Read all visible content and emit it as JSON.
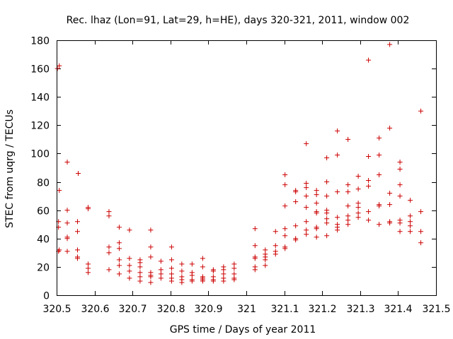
{
  "chart_data": {
    "type": "scatter",
    "title": "Rec. lhaz (Lon=91, Lat=29, h=HE), days 320-321, 2011, window 002",
    "xlabel": "GPS time / Days of year 2011",
    "ylabel": "STEC from uqrg / TECUs",
    "xlim": [
      320.5,
      321.5
    ],
    "ylim": [
      0,
      180
    ],
    "xticks": [
      "320.5",
      "320.6",
      "320.7",
      "320.8",
      "320.9",
      "321",
      "321.1",
      "321.2",
      "321.3",
      "321.4",
      "321.5"
    ],
    "yticks": [
      "0",
      "20",
      "40",
      "60",
      "80",
      "100",
      "120",
      "140",
      "160",
      "180"
    ],
    "grid": false,
    "marker": "plus",
    "color": "#cc0000",
    "points": [
      [
        320.502,
        160
      ],
      [
        320.507,
        162
      ],
      [
        320.507,
        74
      ],
      [
        320.505,
        52
      ],
      [
        320.505,
        48
      ],
      [
        320.507,
        32
      ],
      [
        320.505,
        31
      ],
      [
        320.528,
        94
      ],
      [
        320.528,
        60
      ],
      [
        320.528,
        51
      ],
      [
        320.528,
        41
      ],
      [
        320.528,
        40
      ],
      [
        320.528,
        31
      ],
      [
        320.557,
        86
      ],
      [
        320.555,
        52
      ],
      [
        320.555,
        45
      ],
      [
        320.555,
        32
      ],
      [
        320.555,
        27
      ],
      [
        320.555,
        26
      ],
      [
        320.583,
        62
      ],
      [
        320.583,
        61
      ],
      [
        320.583,
        22
      ],
      [
        320.583,
        19
      ],
      [
        320.583,
        16
      ],
      [
        320.638,
        59
      ],
      [
        320.638,
        56
      ],
      [
        320.638,
        34
      ],
      [
        320.638,
        30
      ],
      [
        320.638,
        18
      ],
      [
        320.665,
        48
      ],
      [
        320.665,
        37
      ],
      [
        320.665,
        33
      ],
      [
        320.665,
        25
      ],
      [
        320.665,
        21
      ],
      [
        320.665,
        15
      ],
      [
        320.692,
        46
      ],
      [
        320.692,
        26
      ],
      [
        320.692,
        21
      ],
      [
        320.692,
        17
      ],
      [
        320.692,
        12
      ],
      [
        320.72,
        25
      ],
      [
        320.72,
        23
      ],
      [
        320.72,
        20
      ],
      [
        320.72,
        16
      ],
      [
        320.72,
        13
      ],
      [
        320.72,
        10
      ],
      [
        320.748,
        46
      ],
      [
        320.748,
        34
      ],
      [
        320.748,
        27
      ],
      [
        320.748,
        16
      ],
      [
        320.748,
        14
      ],
      [
        320.748,
        13
      ],
      [
        320.748,
        9
      ],
      [
        320.775,
        24
      ],
      [
        320.775,
        18
      ],
      [
        320.775,
        15
      ],
      [
        320.775,
        12
      ],
      [
        320.803,
        34
      ],
      [
        320.803,
        25
      ],
      [
        320.803,
        19
      ],
      [
        320.803,
        15
      ],
      [
        320.803,
        12
      ],
      [
        320.803,
        10
      ],
      [
        320.83,
        22
      ],
      [
        320.83,
        17
      ],
      [
        320.83,
        13
      ],
      [
        320.83,
        11
      ],
      [
        320.83,
        9
      ],
      [
        320.857,
        22
      ],
      [
        320.857,
        16
      ],
      [
        320.857,
        14
      ],
      [
        320.857,
        11
      ],
      [
        320.857,
        10
      ],
      [
        320.885,
        26
      ],
      [
        320.885,
        20
      ],
      [
        320.885,
        13
      ],
      [
        320.885,
        12
      ],
      [
        320.885,
        11
      ],
      [
        320.885,
        10
      ],
      [
        320.913,
        18
      ],
      [
        320.913,
        17
      ],
      [
        320.913,
        13
      ],
      [
        320.913,
        11
      ],
      [
        320.913,
        10
      ],
      [
        320.94,
        20
      ],
      [
        320.94,
        18
      ],
      [
        320.94,
        15
      ],
      [
        320.94,
        12
      ],
      [
        320.94,
        10
      ],
      [
        320.968,
        22
      ],
      [
        320.968,
        19
      ],
      [
        320.968,
        15
      ],
      [
        320.968,
        12
      ],
      [
        320.968,
        11
      ],
      [
        321.023,
        47
      ],
      [
        321.023,
        35
      ],
      [
        321.023,
        27
      ],
      [
        321.023,
        26
      ],
      [
        321.023,
        20
      ],
      [
        321.023,
        18
      ],
      [
        321.05,
        32
      ],
      [
        321.05,
        29
      ],
      [
        321.05,
        27
      ],
      [
        321.05,
        25
      ],
      [
        321.05,
        21
      ],
      [
        321.077,
        45
      ],
      [
        321.077,
        35
      ],
      [
        321.077,
        31
      ],
      [
        321.077,
        29
      ],
      [
        321.102,
        85
      ],
      [
        321.102,
        78
      ],
      [
        321.102,
        63
      ],
      [
        321.102,
        47
      ],
      [
        321.102,
        42
      ],
      [
        321.102,
        34
      ],
      [
        321.102,
        33
      ],
      [
        321.13,
        74
      ],
      [
        321.13,
        73
      ],
      [
        321.13,
        66
      ],
      [
        321.13,
        49
      ],
      [
        321.13,
        40
      ],
      [
        321.13,
        39
      ],
      [
        321.158,
        107
      ],
      [
        321.158,
        79
      ],
      [
        321.158,
        76
      ],
      [
        321.158,
        70
      ],
      [
        321.158,
        62
      ],
      [
        321.158,
        52
      ],
      [
        321.158,
        46
      ],
      [
        321.158,
        43
      ],
      [
        321.185,
        74
      ],
      [
        321.185,
        71
      ],
      [
        321.185,
        65
      ],
      [
        321.185,
        59
      ],
      [
        321.185,
        58
      ],
      [
        321.185,
        48
      ],
      [
        321.185,
        47
      ],
      [
        321.185,
        41
      ],
      [
        321.212,
        97
      ],
      [
        321.212,
        80
      ],
      [
        321.212,
        70
      ],
      [
        321.212,
        60
      ],
      [
        321.212,
        58
      ],
      [
        321.212,
        54
      ],
      [
        321.212,
        51
      ],
      [
        321.212,
        42
      ],
      [
        321.24,
        116
      ],
      [
        321.24,
        99
      ],
      [
        321.24,
        73
      ],
      [
        321.24,
        55
      ],
      [
        321.24,
        50
      ],
      [
        321.24,
        48
      ],
      [
        321.24,
        46
      ],
      [
        321.268,
        110
      ],
      [
        321.268,
        78
      ],
      [
        321.268,
        73
      ],
      [
        321.268,
        63
      ],
      [
        321.268,
        56
      ],
      [
        321.268,
        53
      ],
      [
        321.268,
        50
      ],
      [
        321.295,
        84
      ],
      [
        321.295,
        75
      ],
      [
        321.295,
        65
      ],
      [
        321.295,
        62
      ],
      [
        321.295,
        58
      ],
      [
        321.295,
        55
      ],
      [
        321.322,
        166
      ],
      [
        321.322,
        98
      ],
      [
        321.322,
        81
      ],
      [
        321.322,
        77
      ],
      [
        321.322,
        59
      ],
      [
        321.322,
        53
      ],
      [
        321.35,
        111
      ],
      [
        321.35,
        99
      ],
      [
        321.35,
        85
      ],
      [
        321.35,
        64
      ],
      [
        321.35,
        63
      ],
      [
        321.35,
        50
      ],
      [
        321.378,
        177
      ],
      [
        321.378,
        118
      ],
      [
        321.378,
        72
      ],
      [
        321.378,
        64
      ],
      [
        321.378,
        52
      ],
      [
        321.378,
        51
      ],
      [
        321.405,
        94
      ],
      [
        321.405,
        89
      ],
      [
        321.405,
        78
      ],
      [
        321.405,
        70
      ],
      [
        321.405,
        53
      ],
      [
        321.405,
        51
      ],
      [
        321.405,
        45
      ],
      [
        321.432,
        67
      ],
      [
        321.432,
        56
      ],
      [
        321.432,
        52
      ],
      [
        321.432,
        49
      ],
      [
        321.432,
        45
      ],
      [
        321.46,
        130
      ],
      [
        321.46,
        59
      ],
      [
        321.46,
        45
      ],
      [
        321.46,
        37
      ]
    ]
  }
}
